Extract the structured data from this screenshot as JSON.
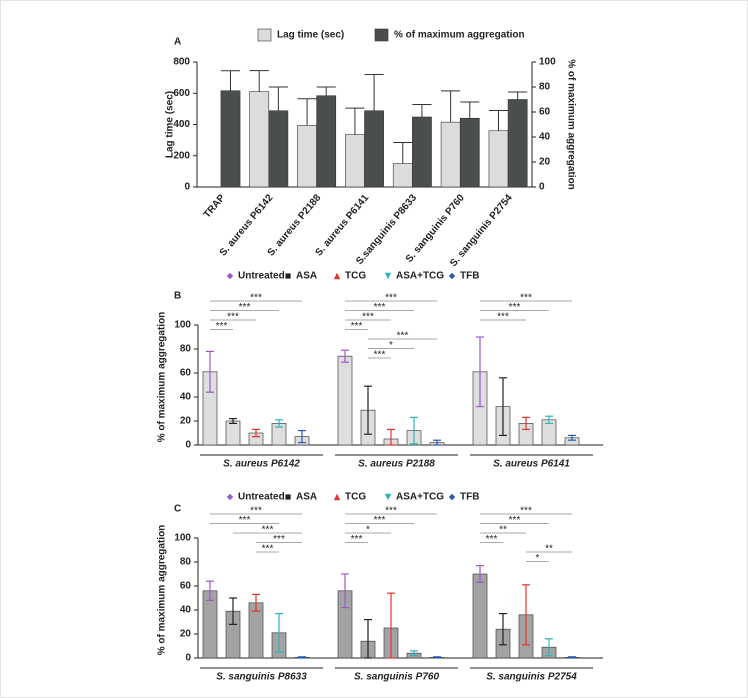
{
  "chart_data": [
    {
      "type": "bar",
      "panel": "A",
      "categories": [
        "TRAP",
        "S. aureus P6142",
        "S. aureus P2188",
        "S. aureus P6141",
        "S.sanguinis P8633",
        "S. sanguinis P760",
        "S. sanguinis P2754"
      ],
      "series": [
        {
          "name": "Lag time (sec)",
          "color": "#dcdcdc",
          "values": [
            null,
            610,
            395,
            335,
            150,
            415,
            360
          ],
          "errors": [
            null,
            135,
            170,
            170,
            135,
            200,
            130
          ]
        },
        {
          "name": "% of maximum aggregation",
          "color": "#4a4f4e",
          "axis": "y2",
          "values": [
            77,
            61,
            73,
            61,
            56,
            55,
            70
          ],
          "errors": [
            16,
            19,
            7,
            29,
            10,
            13,
            6
          ]
        }
      ],
      "ylabel": "Lag time (sec)",
      "y2label": "% of maximum aggregation",
      "ylim": [
        0,
        800
      ],
      "yticks": [
        0,
        200,
        400,
        600,
        800
      ],
      "y2lim": [
        0,
        100
      ],
      "y2ticks": [
        0,
        20,
        40,
        60,
        80,
        100
      ]
    },
    {
      "type": "bar",
      "panel": "B",
      "bar_color": "#dedede",
      "categories": [
        "S. aureus P6142",
        "S. aureus P2188",
        "S. aureus P6141"
      ],
      "series": [
        {
          "name": "Untreated",
          "color": "#9b59c9",
          "values": [
            61,
            74,
            61
          ],
          "errors": [
            17,
            5,
            29
          ]
        },
        {
          "name": "ASA",
          "color": "#222222",
          "values": [
            20,
            29,
            32
          ],
          "errors": [
            2,
            20,
            24
          ]
        },
        {
          "name": "TCG",
          "color": "#e0342d",
          "values": [
            10,
            5,
            18
          ],
          "errors": [
            3,
            8,
            5
          ]
        },
        {
          "name": "ASA+TCG",
          "color": "#2bb6b8",
          "values": [
            18,
            12,
            21
          ],
          "errors": [
            3,
            11,
            3
          ]
        },
        {
          "name": "TFB",
          "color": "#2a5bb0",
          "values": [
            7,
            2,
            6
          ],
          "errors": [
            5,
            2,
            2
          ]
        }
      ],
      "ylabel": "% of maximum aggregation",
      "ylim": [
        0,
        100
      ],
      "yticks": [
        0,
        20,
        40,
        60,
        80,
        100
      ],
      "comparisons": [
        [
          {
            "a": "Untreated",
            "b": "TFB",
            "label": "***"
          },
          {
            "a": "Untreated",
            "b": "ASA+TCG",
            "label": "***"
          },
          {
            "a": "Untreated",
            "b": "TCG",
            "label": "***"
          },
          {
            "a": "Untreated",
            "b": "ASA",
            "label": "***"
          }
        ],
        [
          {
            "a": "Untreated",
            "b": "TFB",
            "label": "***"
          },
          {
            "a": "Untreated",
            "b": "ASA+TCG",
            "label": "***"
          },
          {
            "a": "Untreated",
            "b": "TCG",
            "label": "***"
          },
          {
            "a": "Untreated",
            "b": "ASA",
            "label": "***"
          },
          {
            "a": "ASA",
            "b": "TFB",
            "label": "***"
          },
          {
            "a": "ASA",
            "b": "ASA+TCG",
            "label": "*"
          },
          {
            "a": "ASA",
            "b": "TCG",
            "label": "***"
          }
        ],
        [
          {
            "a": "Untreated",
            "b": "TFB",
            "label": "***"
          },
          {
            "a": "Untreated",
            "b": "ASA+TCG",
            "label": "***"
          },
          {
            "a": "Untreated",
            "b": "TCG",
            "label": "***"
          }
        ]
      ]
    },
    {
      "type": "bar",
      "panel": "C",
      "bar_color": "#a3a3a3",
      "categories": [
        "S. sanguinis P8633",
        "S. sanguinis P760",
        "S. sanguinis P2754"
      ],
      "series": [
        {
          "name": "Untreated",
          "color": "#9b59c9",
          "values": [
            56,
            56,
            70
          ],
          "errors": [
            8,
            14,
            7
          ]
        },
        {
          "name": "ASA",
          "color": "#222222",
          "values": [
            39,
            14,
            24
          ],
          "errors": [
            11,
            18,
            13
          ]
        },
        {
          "name": "TCG",
          "color": "#e0342d",
          "values": [
            46,
            25,
            36
          ],
          "errors": [
            7,
            29,
            25
          ]
        },
        {
          "name": "ASA+TCG",
          "color": "#2bb6b8",
          "values": [
            21,
            4,
            9
          ],
          "errors": [
            16,
            2,
            7
          ]
        },
        {
          "name": "TFB",
          "color": "#2a5bb0",
          "values": [
            0.5,
            0.5,
            0.5
          ],
          "errors": [
            0.5,
            0.5,
            0.5
          ]
        }
      ],
      "ylabel": "% of maximum aggregation",
      "ylim": [
        0,
        100
      ],
      "yticks": [
        0,
        20,
        40,
        60,
        80,
        100
      ],
      "comparisons": [
        [
          {
            "a": "Untreated",
            "b": "TFB",
            "label": "***"
          },
          {
            "a": "Untreated",
            "b": "ASA+TCG",
            "label": "***"
          },
          {
            "a": "ASA",
            "b": "TFB",
            "label": "***"
          },
          {
            "a": "TCG",
            "b": "TFB",
            "label": "***"
          },
          {
            "a": "TCG",
            "b": "ASA+TCG",
            "label": "***"
          }
        ],
        [
          {
            "a": "Untreated",
            "b": "TFB",
            "label": "***"
          },
          {
            "a": "Untreated",
            "b": "ASA+TCG",
            "label": "***"
          },
          {
            "a": "Untreated",
            "b": "TCG",
            "label": "*"
          },
          {
            "a": "Untreated",
            "b": "ASA",
            "label": "***"
          }
        ],
        [
          {
            "a": "Untreated",
            "b": "TFB",
            "label": "***"
          },
          {
            "a": "Untreated",
            "b": "ASA+TCG",
            "label": "***"
          },
          {
            "a": "Untreated",
            "b": "TCG",
            "label": "**"
          },
          {
            "a": "Untreated",
            "b": "ASA",
            "label": "***"
          },
          {
            "a": "TCG",
            "b": "TFB",
            "label": "**"
          },
          {
            "a": "TCG",
            "b": "ASA+TCG",
            "label": "*"
          }
        ]
      ]
    }
  ]
}
